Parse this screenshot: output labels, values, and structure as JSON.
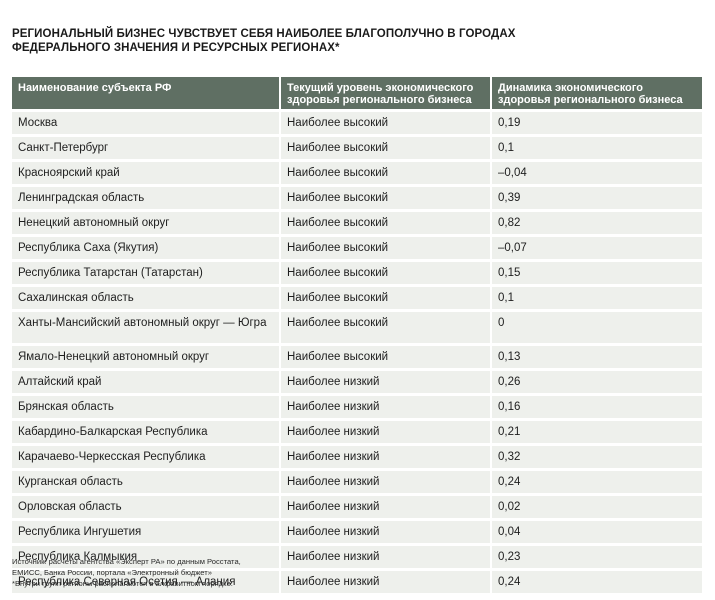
{
  "title": {
    "line1": "РЕГИОНАЛЬНЫЙ БИЗНЕС ЧУВСТВУЕТ СЕБЯ НАИБОЛЕЕ БЛАГОПОЛУЧНО В ГОРОДАХ",
    "line2": "ФЕДЕРАЛЬНОГО ЗНАЧЕНИЯ И РЕСУРСНЫХ РЕГИОНАХ*"
  },
  "table": {
    "headers": [
      "Наименование субъекта РФ",
      "Текущий уровень  экономического здоровья регионального бизнеса",
      "Динамика экономического здоровья регионального бизнеса"
    ],
    "rows": [
      [
        "Москва",
        "Наиболее высокий",
        "0,19"
      ],
      [
        "Санкт-Петербург",
        "Наиболее высокий",
        "0,1"
      ],
      [
        "Красноярский край",
        "Наиболее высокий",
        "–0,04"
      ],
      [
        "Ленинградская область",
        "Наиболее высокий",
        "0,39"
      ],
      [
        "Ненецкий автономный округ",
        "Наиболее высокий",
        "0,82"
      ],
      [
        "Республика Саха (Якутия)",
        "Наиболее высокий",
        "–0,07"
      ],
      [
        "Республика Татарстан (Татарстан)",
        "Наиболее высокий",
        "0,15"
      ],
      [
        "Сахалинская область",
        "Наиболее высокий",
        "0,1"
      ],
      [
        "Ханты-Мансийский автономный округ — Югра",
        "Наиболее высокий",
        "0"
      ],
      [
        "Ямало-Ненецкий автономный округ",
        "Наиболее высокий",
        "0,13"
      ],
      [
        "Алтайский край",
        "Наиболее низкий",
        "0,26"
      ],
      [
        "Брянская область",
        "Наиболее низкий",
        "0,16"
      ],
      [
        "Кабардино-Балкарская Республика",
        "Наиболее низкий",
        "0,21"
      ],
      [
        "Карачаево-Черкесская Республика",
        "Наиболее низкий",
        "0,32"
      ],
      [
        "Курганская область",
        "Наиболее низкий",
        "0,24"
      ],
      [
        "Орловская область",
        "Наиболее низкий",
        "0,02"
      ],
      [
        "Республика Ингушетия",
        "Наиболее низкий",
        "0,04"
      ],
      [
        "Республика Калмыкия",
        "Наиболее низкий",
        "0,23"
      ],
      [
        "Республика Северная Осетия — Алания",
        "Наиболее низкий",
        "0,24"
      ]
    ]
  },
  "footnote": {
    "line1": "Источник: расчеты агентства «Эксперт РА» по данным Росстата,",
    "line2": "ЕМИСС, Банка России, портала «Электронный бюджет»",
    "line3": "*Внутри групп регионы располагаются в алфавитном порядке."
  },
  "colors": {
    "header_bg": "#5f6f63",
    "row_bg": "#eef0ec"
  }
}
